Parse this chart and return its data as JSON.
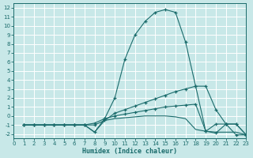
{
  "xlabel": "Humidex (Indice chaleur)",
  "background_color": "#c8e8e8",
  "grid_color": "#ffffff",
  "line_color": "#1a6b6b",
  "xlim": [
    0,
    23
  ],
  "ylim": [
    -2.5,
    12.5
  ],
  "xticks": [
    0,
    1,
    2,
    3,
    4,
    5,
    6,
    7,
    8,
    9,
    10,
    11,
    12,
    13,
    14,
    15,
    16,
    17,
    18,
    19,
    20,
    21,
    22,
    23
  ],
  "yticks": [
    -2,
    -1,
    0,
    1,
    2,
    3,
    4,
    5,
    6,
    7,
    8,
    9,
    10,
    11,
    12
  ],
  "s1_x": [
    1,
    2,
    3,
    4,
    5,
    6,
    7,
    8,
    9,
    10,
    11,
    12,
    13,
    14,
    15,
    16,
    17,
    18,
    19,
    20,
    21,
    22,
    23
  ],
  "s1_y": [
    -1.0,
    -1.0,
    -1.0,
    -1.0,
    -1.0,
    -1.0,
    -1.0,
    -1.8,
    -0.3,
    2.0,
    6.3,
    9.0,
    10.5,
    11.5,
    11.8,
    11.5,
    8.2,
    3.3,
    3.3,
    0.7,
    -0.9,
    -0.9,
    -2.1
  ],
  "s2_x": [
    1,
    2,
    3,
    4,
    5,
    6,
    7,
    8,
    9,
    10,
    11,
    12,
    13,
    14,
    15,
    16,
    17,
    18,
    19,
    20,
    21,
    22,
    23
  ],
  "s2_y": [
    -1.0,
    -1.0,
    -1.0,
    -1.0,
    -1.0,
    -1.0,
    -1.0,
    -1.0,
    -0.5,
    0.3,
    0.7,
    1.1,
    1.5,
    1.9,
    2.3,
    2.7,
    3.0,
    3.3,
    -1.7,
    -0.9,
    -0.9,
    -2.1,
    -2.1
  ],
  "s3_x": [
    1,
    2,
    3,
    4,
    5,
    6,
    7,
    8,
    9,
    10,
    11,
    12,
    13,
    14,
    15,
    16,
    17,
    18,
    19,
    20,
    21,
    22,
    23
  ],
  "s3_y": [
    -1.0,
    -1.0,
    -1.0,
    -1.0,
    -1.0,
    -1.0,
    -1.0,
    -0.8,
    -0.3,
    0.0,
    0.2,
    0.4,
    0.6,
    0.8,
    1.0,
    1.1,
    1.2,
    1.3,
    -1.7,
    -1.9,
    -0.9,
    -0.9,
    -2.1
  ],
  "s4_x": [
    1,
    2,
    3,
    4,
    5,
    6,
    7,
    8,
    9,
    10,
    11,
    12,
    13,
    14,
    15,
    16,
    17,
    18,
    19,
    20,
    21,
    22,
    23
  ],
  "s4_y": [
    -1.0,
    -1.0,
    -1.0,
    -1.0,
    -1.0,
    -1.0,
    -1.0,
    -1.8,
    -0.5,
    -0.3,
    -0.2,
    -0.1,
    0.0,
    0.0,
    -0.0,
    -0.1,
    -0.3,
    -1.5,
    -1.7,
    -1.8,
    -1.8,
    -1.8,
    -2.1
  ]
}
